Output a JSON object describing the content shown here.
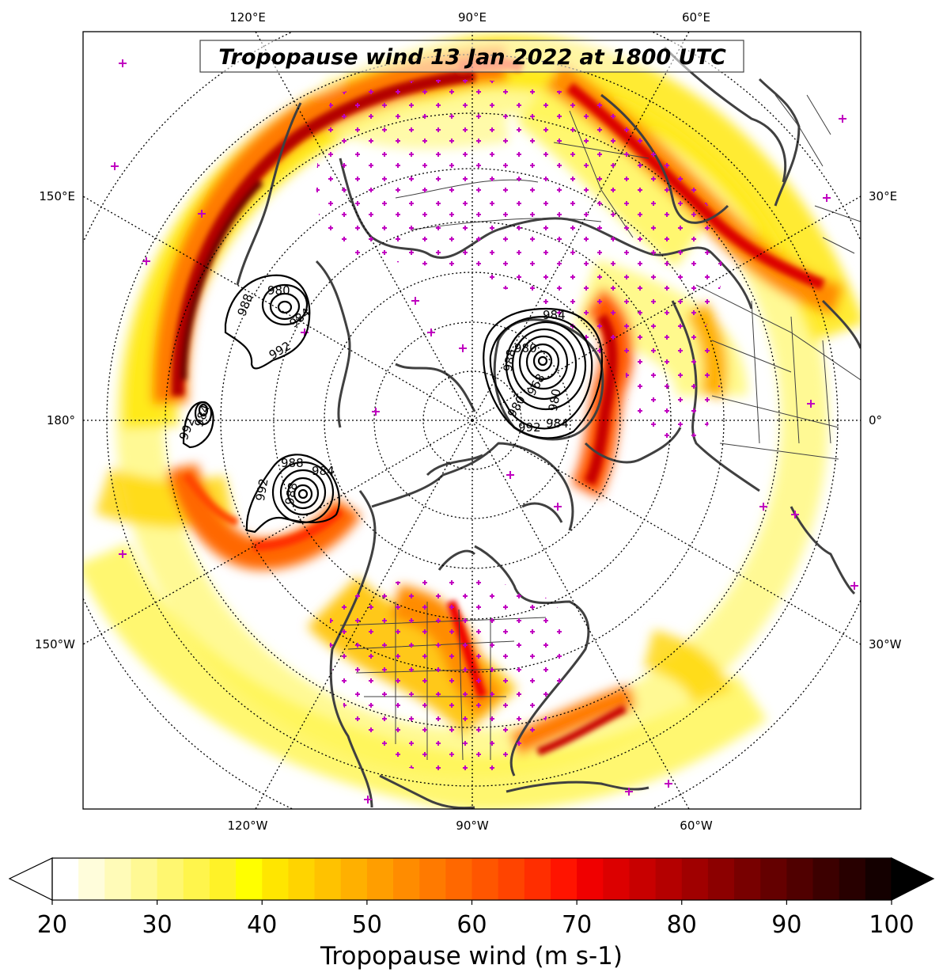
{
  "title": "Tropopause wind 13 Jan 2022 at 1800 UTC",
  "colorbar": {
    "label": "Tropopause wind (m s-1)",
    "min": 20,
    "max": 100,
    "step": 2.5,
    "ticks": [
      "20",
      "30",
      "40",
      "50",
      "60",
      "70",
      "80",
      "90",
      "100"
    ],
    "extend": "both",
    "colors": [
      "#ffffff",
      "#fffddb",
      "#fffbb8",
      "#fff994",
      "#fff770",
      "#fff54c",
      "#fff228",
      "#ffff00",
      "#ffe600",
      "#ffd400",
      "#ffc200",
      "#ffb000",
      "#ff9e00",
      "#ff8c00",
      "#ff7a00",
      "#ff6800",
      "#ff5600",
      "#ff4400",
      "#ff2e00",
      "#ff1400",
      "#f00000",
      "#dc0000",
      "#c80000",
      "#b40000",
      "#a00000",
      "#8c0000",
      "#780000",
      "#640000",
      "#500000",
      "#3c0000",
      "#280000",
      "#140000"
    ]
  },
  "map": {
    "projection": "north-polar-stereographic",
    "longitude_labels": {
      "top": [
        "120°E",
        "90°E",
        "60°E"
      ],
      "bottom": [
        "120°W",
        "90°W",
        "60°W"
      ],
      "left": [
        "150°E",
        "180°",
        "150°W"
      ],
      "right": [
        "30°E",
        "0°",
        "30°W"
      ]
    },
    "coastline_color": "#404040",
    "station_marker_color": "#c000c0",
    "gridline_style": "dotted"
  },
  "contours": {
    "type": "sea-level pressure (hPa)",
    "color": "#000000",
    "labels": [
      "988",
      "980",
      "984",
      "992",
      "984",
      "992",
      "988",
      "992",
      "988",
      "984",
      "988",
      "980",
      "984",
      "968",
      "980",
      "980",
      "984",
      "992"
    ]
  }
}
